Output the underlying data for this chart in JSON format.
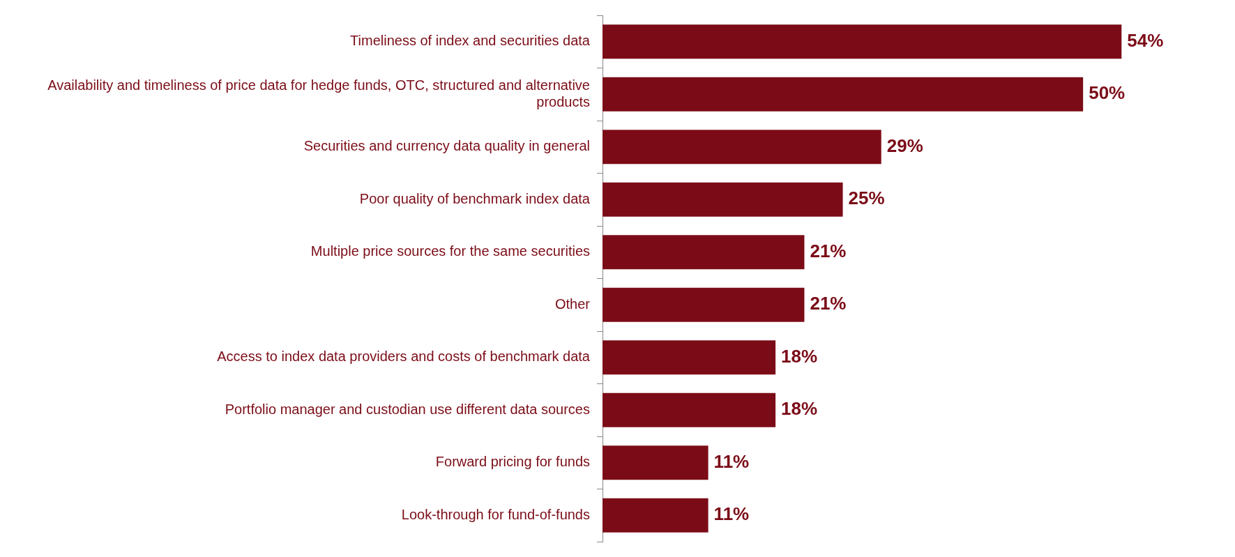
{
  "chart_data": {
    "type": "bar",
    "orientation": "horizontal",
    "categories": [
      "Timeliness of index and securities data",
      "Availability and timeliness of price data for hedge funds, OTC, structured and alternative products",
      "Securities and currency data quality in general",
      "Poor quality of benchmark index data",
      "Multiple price sources for the same securities",
      "Other",
      "Access to index data providers and costs of benchmark data",
      "Portfolio manager and custodian use different data sources",
      "Forward pricing for funds",
      "Look-through for fund-of-funds"
    ],
    "values": [
      54,
      50,
      29,
      25,
      21,
      21,
      18,
      18,
      11,
      11
    ],
    "value_labels": [
      "54%",
      "50%",
      "29%",
      "25%",
      "21%",
      "21%",
      "18%",
      "18%",
      "11%",
      "11%"
    ],
    "color": "#7b0c17",
    "grid": false,
    "legend": false
  }
}
